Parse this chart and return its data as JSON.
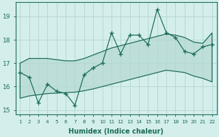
{
  "xlabel": "Humidex (Indice chaleur)",
  "x_values": [
    1,
    2,
    3,
    4,
    5,
    6,
    7,
    8,
    9,
    10,
    11,
    12,
    13,
    14,
    15,
    16,
    17,
    18,
    19,
    20,
    21,
    22
  ],
  "main_line": [
    16.6,
    16.4,
    15.3,
    16.1,
    15.8,
    15.7,
    15.2,
    16.5,
    16.8,
    17.0,
    18.3,
    17.4,
    18.2,
    18.2,
    17.8,
    19.3,
    18.3,
    18.1,
    17.5,
    17.4,
    17.7,
    17.8
  ],
  "upper_line": [
    17.0,
    17.2,
    17.2,
    17.2,
    17.15,
    17.1,
    17.1,
    17.2,
    17.35,
    17.5,
    17.65,
    17.75,
    17.85,
    17.95,
    18.05,
    18.15,
    18.25,
    18.2,
    18.1,
    17.9,
    17.85,
    18.3
  ],
  "lower_line": [
    15.5,
    15.6,
    15.65,
    15.7,
    15.72,
    15.74,
    15.76,
    15.82,
    15.9,
    16.0,
    16.1,
    16.2,
    16.3,
    16.4,
    16.5,
    16.6,
    16.7,
    16.65,
    16.6,
    16.45,
    16.35,
    16.2
  ],
  "ylim": [
    14.8,
    19.6
  ],
  "yticks": [
    15,
    16,
    17,
    18,
    19
  ],
  "color": "#1a6b5a",
  "bg_color": "#d4eeeb",
  "grid_color": "#b5d8d4",
  "figsize": [
    3.2,
    2.0
  ],
  "dpi": 100
}
